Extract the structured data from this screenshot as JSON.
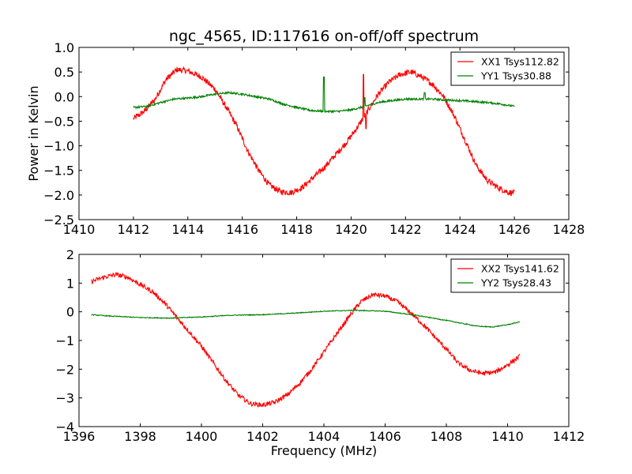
{
  "chart_data": [
    {
      "type": "line",
      "title": "ngc_4565, ID:117616 on-off/off spectrum",
      "xlabel": "",
      "ylabel": "Power in Kelvin",
      "xlim": [
        1410,
        1428
      ],
      "ylim": [
        -2.5,
        1.0
      ],
      "xticks": [
        1410,
        1412,
        1414,
        1416,
        1418,
        1420,
        1422,
        1424,
        1426,
        1428
      ],
      "yticks": [
        1.0,
        0.5,
        0.0,
        -0.5,
        -1.0,
        -1.5,
        -2.0,
        -2.5
      ],
      "xtick_labels": [
        "1410",
        "1412",
        "1414",
        "1416",
        "1418",
        "1420",
        "1422",
        "1424",
        "1426",
        "1428"
      ],
      "ytick_labels": [
        "1.0",
        "0.5",
        "0.0",
        "−0.5",
        "−1.0",
        "−1.5",
        "−2.0",
        "−2.5"
      ],
      "legend_position": "top-right",
      "grid": false,
      "series": [
        {
          "name": "XX1 Tsys112.82",
          "color": "#ff0000",
          "noise": 0.06,
          "points": [
            [
              1412.0,
              -0.45
            ],
            [
              1412.4,
              -0.3
            ],
            [
              1412.8,
              -0.05
            ],
            [
              1413.2,
              0.35
            ],
            [
              1413.6,
              0.55
            ],
            [
              1414.0,
              0.52
            ],
            [
              1414.5,
              0.4
            ],
            [
              1415.0,
              0.15
            ],
            [
              1415.5,
              -0.3
            ],
            [
              1415.8,
              -0.6
            ],
            [
              1416.2,
              -1.1
            ],
            [
              1416.6,
              -1.5
            ],
            [
              1417.0,
              -1.8
            ],
            [
              1417.4,
              -1.93
            ],
            [
              1417.8,
              -1.95
            ],
            [
              1418.2,
              -1.85
            ],
            [
              1418.6,
              -1.65
            ],
            [
              1419.0,
              -1.45
            ],
            [
              1419.4,
              -1.2
            ],
            [
              1419.8,
              -0.95
            ],
            [
              1420.2,
              -0.65
            ],
            [
              1420.6,
              -0.3
            ],
            [
              1421.0,
              0.05
            ],
            [
              1421.4,
              0.3
            ],
            [
              1421.8,
              0.45
            ],
            [
              1422.2,
              0.5
            ],
            [
              1422.6,
              0.4
            ],
            [
              1423.0,
              0.25
            ],
            [
              1423.4,
              0.0
            ],
            [
              1423.8,
              -0.4
            ],
            [
              1424.2,
              -0.9
            ],
            [
              1424.6,
              -1.4
            ],
            [
              1425.0,
              -1.7
            ],
            [
              1425.4,
              -1.85
            ],
            [
              1425.8,
              -1.95
            ],
            [
              1426.0,
              -1.95
            ]
          ],
          "spikes": [
            [
              1420.45,
              0.45
            ],
            [
              1420.55,
              -0.65
            ]
          ]
        },
        {
          "name": "YY1 Tsys30.88",
          "color": "#008000",
          "noise": 0.02,
          "points": [
            [
              1412.0,
              -0.22
            ],
            [
              1412.5,
              -0.2
            ],
            [
              1413.0,
              -0.12
            ],
            [
              1413.5,
              -0.05
            ],
            [
              1414.0,
              -0.03
            ],
            [
              1414.5,
              0.0
            ],
            [
              1415.0,
              0.05
            ],
            [
              1415.5,
              0.08
            ],
            [
              1416.0,
              0.05
            ],
            [
              1416.5,
              0.0
            ],
            [
              1417.0,
              -0.05
            ],
            [
              1417.5,
              -0.15
            ],
            [
              1418.0,
              -0.22
            ],
            [
              1418.5,
              -0.28
            ],
            [
              1419.0,
              -0.3
            ],
            [
              1419.5,
              -0.3
            ],
            [
              1420.0,
              -0.27
            ],
            [
              1420.5,
              -0.2
            ],
            [
              1421.0,
              -0.12
            ],
            [
              1421.5,
              -0.08
            ],
            [
              1422.0,
              -0.05
            ],
            [
              1422.5,
              -0.05
            ],
            [
              1423.0,
              -0.05
            ],
            [
              1423.5,
              -0.07
            ],
            [
              1424.0,
              -0.08
            ],
            [
              1424.5,
              -0.1
            ],
            [
              1425.0,
              -0.12
            ],
            [
              1425.5,
              -0.15
            ],
            [
              1426.0,
              -0.2
            ]
          ],
          "spikes": [
            [
              1419.0,
              0.4
            ],
            [
              1420.5,
              -0.02
            ],
            [
              1422.7,
              0.08
            ]
          ]
        }
      ]
    },
    {
      "type": "line",
      "title": "",
      "xlabel": "Frequency (MHz)",
      "ylabel": "",
      "xlim": [
        1396,
        1412
      ],
      "ylim": [
        -4,
        2
      ],
      "xticks": [
        1396,
        1398,
        1400,
        1402,
        1404,
        1406,
        1408,
        1410,
        1412
      ],
      "yticks": [
        2,
        1,
        0,
        -1,
        -2,
        -3,
        -4
      ],
      "xtick_labels": [
        "1396",
        "1398",
        "1400",
        "1402",
        "1404",
        "1406",
        "1408",
        "1410",
        "1412"
      ],
      "ytick_labels": [
        "2",
        "1",
        "0",
        "−1",
        "−2",
        "−3",
        "−4"
      ],
      "legend_position": "top-right",
      "grid": false,
      "series": [
        {
          "name": "XX2 Tsys141.62",
          "color": "#ff0000",
          "noise": 0.08,
          "points": [
            [
              1396.4,
              1.05
            ],
            [
              1396.8,
              1.2
            ],
            [
              1397.2,
              1.3
            ],
            [
              1397.6,
              1.2
            ],
            [
              1398.0,
              0.95
            ],
            [
              1398.4,
              0.7
            ],
            [
              1398.8,
              0.3
            ],
            [
              1399.2,
              -0.2
            ],
            [
              1399.6,
              -0.7
            ],
            [
              1400.0,
              -1.2
            ],
            [
              1400.4,
              -1.8
            ],
            [
              1400.8,
              -2.4
            ],
            [
              1401.2,
              -2.9
            ],
            [
              1401.6,
              -3.2
            ],
            [
              1402.0,
              -3.25
            ],
            [
              1402.4,
              -3.15
            ],
            [
              1402.8,
              -2.9
            ],
            [
              1403.2,
              -2.5
            ],
            [
              1403.6,
              -2.0
            ],
            [
              1404.0,
              -1.4
            ],
            [
              1404.4,
              -0.8
            ],
            [
              1404.8,
              -0.2
            ],
            [
              1405.2,
              0.35
            ],
            [
              1405.6,
              0.6
            ],
            [
              1406.0,
              0.55
            ],
            [
              1406.4,
              0.35
            ],
            [
              1406.8,
              0.0
            ],
            [
              1407.2,
              -0.4
            ],
            [
              1407.6,
              -0.85
            ],
            [
              1408.0,
              -1.3
            ],
            [
              1408.4,
              -1.8
            ],
            [
              1408.8,
              -2.05
            ],
            [
              1409.2,
              -2.15
            ],
            [
              1409.6,
              -2.1
            ],
            [
              1410.0,
              -1.85
            ],
            [
              1410.4,
              -1.55
            ]
          ],
          "spikes": []
        },
        {
          "name": "YY2 Tsys28.43",
          "color": "#008000",
          "noise": 0.015,
          "points": [
            [
              1396.4,
              -0.1
            ],
            [
              1397.0,
              -0.15
            ],
            [
              1398.0,
              -0.2
            ],
            [
              1399.0,
              -0.22
            ],
            [
              1400.0,
              -0.18
            ],
            [
              1401.0,
              -0.12
            ],
            [
              1402.0,
              -0.1
            ],
            [
              1403.0,
              -0.05
            ],
            [
              1404.0,
              0.02
            ],
            [
              1405.0,
              0.05
            ],
            [
              1406.0,
              0.02
            ],
            [
              1407.0,
              -0.12
            ],
            [
              1408.0,
              -0.3
            ],
            [
              1409.0,
              -0.5
            ],
            [
              1409.5,
              -0.53
            ],
            [
              1410.0,
              -0.45
            ],
            [
              1410.4,
              -0.35
            ]
          ],
          "spikes": []
        }
      ]
    }
  ]
}
